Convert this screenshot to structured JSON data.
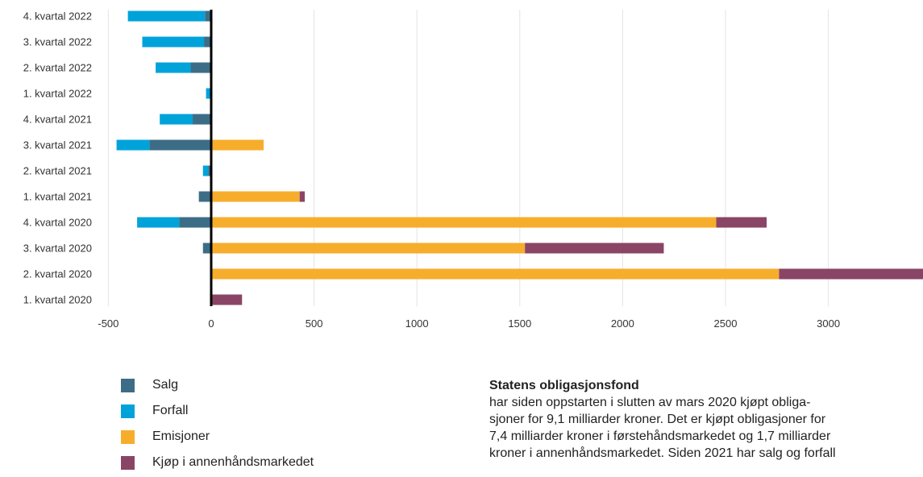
{
  "chart_data": {
    "type": "bar",
    "orientation": "horizontal",
    "stacked": true,
    "categories": [
      "4. kvartal 2022",
      "3. kvartal 2022",
      "2. kvartal 2022",
      "1. kvartal 2022",
      "4. kvartal 2021",
      "3. kvartal 2021",
      "2. kvartal 2021",
      "1. kvartal 2021",
      "4. kvartal 2020",
      "3. kvartal 2020",
      "2. kvartal 2020",
      "1. kvartal 2020"
    ],
    "series": [
      {
        "name": "Salg",
        "color": "#3d6d86",
        "values": [
          -30,
          -35,
          -100,
          0,
          -90,
          -300,
          -15,
          -60,
          -155,
          -40,
          0,
          0
        ]
      },
      {
        "name": "Forfall",
        "color": "#00a3d9",
        "values": [
          -375,
          -300,
          -170,
          -25,
          -160,
          -160,
          -25,
          0,
          -205,
          0,
          0,
          0
        ]
      },
      {
        "name": "Emisjoner",
        "color": "#f7ad2c",
        "values": [
          0,
          0,
          0,
          0,
          0,
          255,
          0,
          430,
          2455,
          1525,
          2760,
          0
        ]
      },
      {
        "name": "Kjøp i annenhåndsmarkedet",
        "color": "#8a4566",
        "values": [
          0,
          0,
          0,
          0,
          0,
          0,
          0,
          25,
          245,
          675,
          700,
          150
        ]
      }
    ],
    "xticks": [
      -500,
      0,
      500,
      1000,
      1500,
      2000,
      2500,
      3000
    ],
    "xtick_labels": [
      "-500",
      "0",
      "500",
      "1000",
      "1500",
      "2000",
      "2500",
      "3000"
    ],
    "xlim": [
      -525,
      3460
    ],
    "grid": true,
    "legend_position": "bottom-left",
    "title": "",
    "xlabel": "",
    "ylabel": ""
  },
  "note": {
    "title": "Statens obligasjonsfond",
    "body": "har siden oppstarten i slutten av mars 2020 kjøpt obliga-\nsjoner for 9,1 milliarder kroner. Det er kjøpt obligasjoner for\n7,4 milliarder kroner i førstehåndsmarkedet og 1,7 milliarder\nkroner i annenhåndsmarkedet. Siden 2021 har salg og forfall"
  }
}
